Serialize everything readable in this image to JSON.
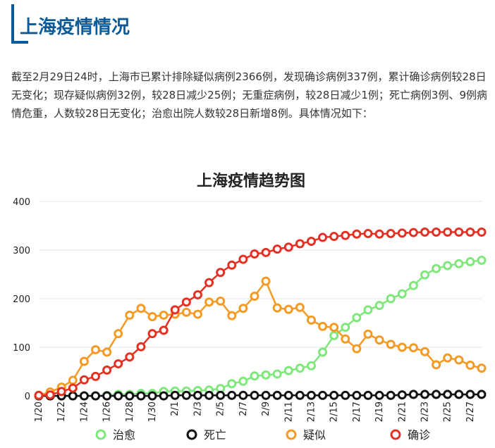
{
  "header": {
    "title": "上海疫情情况"
  },
  "summary": "截至2月29日24时，上海市已累计排除疑似病例2366例，发现确诊病例337例，累计确诊病例较28日无变化；现存疑似病例32例，较28日减少25例；无重症病例，较28日减少1例；死亡病例3例、9例病情危重，人数较28日无变化；治愈出院人数较28日新增8例。具体情况如下：",
  "chart_data": {
    "type": "line",
    "title": "上海疫情趋势图",
    "xlabel": "",
    "ylabel": "",
    "ylim": [
      0,
      400
    ],
    "yticks": [
      0,
      100,
      200,
      300,
      400
    ],
    "grid": true,
    "legend_position": "bottom",
    "x": [
      "1/20",
      "1/21",
      "1/22",
      "1/23",
      "1/24",
      "1/25",
      "1/26",
      "1/27",
      "1/28",
      "1/29",
      "1/30",
      "1/31",
      "2/1",
      "2/2",
      "2/3",
      "2/4",
      "2/5",
      "2/6",
      "2/7",
      "2/8",
      "2/9",
      "2/10",
      "2/11",
      "2/12",
      "2/13",
      "2/14",
      "2/15",
      "2/16",
      "2/17",
      "2/18",
      "2/19",
      "2/20",
      "2/21",
      "2/22",
      "2/23",
      "2/24",
      "2/25",
      "2/26",
      "2/27",
      "2/28"
    ],
    "xtick_labels": [
      "1/20",
      "1/22",
      "1/24",
      "1/26",
      "1/28",
      "1/30",
      "2/1",
      "2/3",
      "2/5",
      "2/7",
      "2/9",
      "2/11",
      "2/13",
      "2/15",
      "2/17",
      "2/19",
      "2/21",
      "2/23",
      "2/25",
      "2/27"
    ],
    "series": [
      {
        "name": "治愈",
        "color": "#7ee87b",
        "values": [
          0,
          0,
          0,
          0,
          0,
          0,
          1,
          3,
          3,
          5,
          5,
          9,
          10,
          10,
          11,
          12,
          15,
          25,
          30,
          41,
          43,
          45,
          52,
          57,
          62,
          90,
          124,
          141,
          161,
          177,
          186,
          200,
          210,
          227,
          249,
          262,
          268,
          272,
          276,
          279
        ]
      },
      {
        "name": "死亡",
        "color": "#111111",
        "values": [
          0,
          0,
          0,
          0,
          0,
          0,
          0,
          0,
          0,
          0,
          0,
          0,
          1,
          1,
          1,
          1,
          1,
          1,
          1,
          1,
          1,
          1,
          1,
          1,
          1,
          1,
          1,
          1,
          1,
          1,
          1,
          1,
          2,
          3,
          3,
          3,
          3,
          3,
          3,
          3
        ]
      },
      {
        "name": "疑似",
        "color": "#f59a23",
        "values": [
          1,
          8,
          18,
          32,
          71,
          95,
          90,
          128,
          166,
          180,
          163,
          166,
          168,
          172,
          168,
          193,
          195,
          165,
          180,
          205,
          236,
          181,
          178,
          182,
          156,
          143,
          141,
          117,
          97,
          127,
          115,
          106,
          100,
          99,
          91,
          64,
          78,
          74,
          63,
          57
        ]
      },
      {
        "name": "确诊",
        "color": "#e53124",
        "values": [
          1,
          2,
          9,
          16,
          33,
          40,
          53,
          66,
          80,
          101,
          128,
          135,
          177,
          193,
          208,
          233,
          254,
          269,
          281,
          292,
          295,
          302,
          306,
          313,
          318,
          326,
          328,
          330,
          333,
          334,
          333,
          334,
          335,
          336,
          337,
          337,
          337,
          337,
          337,
          337
        ]
      }
    ]
  }
}
